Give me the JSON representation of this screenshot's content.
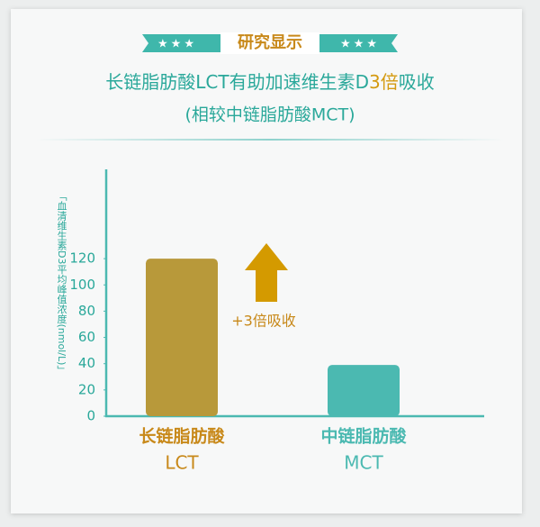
{
  "chart_data": {
    "type": "bar",
    "badge": "研究显示",
    "title_parts": [
      "长链脂肪酸LCT有助加速维生素D",
      "3倍",
      "吸收"
    ],
    "subtitle": "(相较中链脂肪酸MCT)",
    "y_label": "「血清维生素D3平均峰值浓度(nmol/L)」",
    "categories": [
      "长链脂肪酸",
      "中链脂肪酸"
    ],
    "category_codes": [
      "LCT",
      "MCT"
    ],
    "values": [
      120,
      39
    ],
    "colors": [
      "#b8993a",
      "#4bb9b1"
    ],
    "annotation": "+3倍吸收",
    "ylim": [
      0,
      188
    ],
    "yticks": [
      0,
      20,
      40,
      60,
      80,
      100,
      120
    ],
    "grid": false
  }
}
